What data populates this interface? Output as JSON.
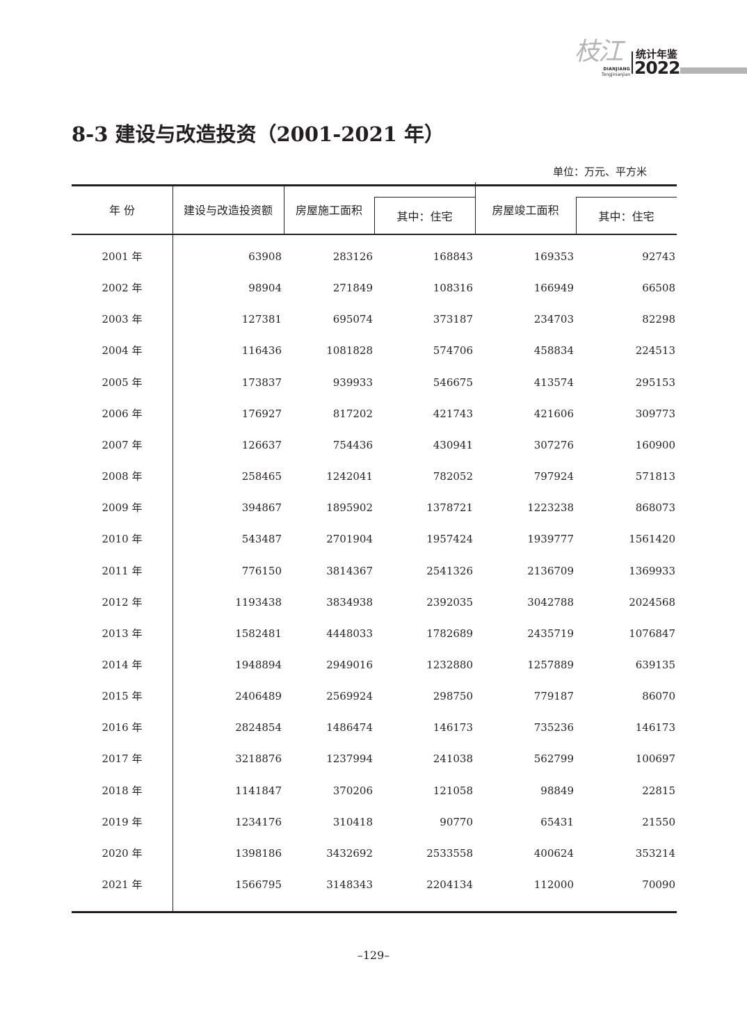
{
  "header": {
    "logo_calligraphy": "枝江",
    "logo_pinyin_1": "DIANJIANG",
    "logo_pinyin_2": "Tongjinianjian",
    "logo_title": "统计年鉴",
    "logo_year": "2022"
  },
  "title": "8-3  建设与改造投资（2001-2021 年）",
  "unit": "单位：万元、平方米",
  "table": {
    "columns": [
      "年 份",
      "建设与改造投资额",
      "房屋施工面积",
      "其中：住宅",
      "房屋竣工面积",
      "其中：住宅"
    ],
    "rows": [
      [
        "2001 年",
        "63908",
        "283126",
        "168843",
        "169353",
        "92743"
      ],
      [
        "2002 年",
        "98904",
        "271849",
        "108316",
        "166949",
        "66508"
      ],
      [
        "2003 年",
        "127381",
        "695074",
        "373187",
        "234703",
        "82298"
      ],
      [
        "2004 年",
        "116436",
        "1081828",
        "574706",
        "458834",
        "224513"
      ],
      [
        "2005 年",
        "173837",
        "939933",
        "546675",
        "413574",
        "295153"
      ],
      [
        "2006 年",
        "176927",
        "817202",
        "421743",
        "421606",
        "309773"
      ],
      [
        "2007 年",
        "126637",
        "754436",
        "430941",
        "307276",
        "160900"
      ],
      [
        "2008 年",
        "258465",
        "1242041",
        "782052",
        "797924",
        "571813"
      ],
      [
        "2009 年",
        "394867",
        "1895902",
        "1378721",
        "1223238",
        "868073"
      ],
      [
        "2010 年",
        "543487",
        "2701904",
        "1957424",
        "1939777",
        "1561420"
      ],
      [
        "2011 年",
        "776150",
        "3814367",
        "2541326",
        "2136709",
        "1369933"
      ],
      [
        "2012 年",
        "1193438",
        "3834938",
        "2392035",
        "3042788",
        "2024568"
      ],
      [
        "2013 年",
        "1582481",
        "4448033",
        "1782689",
        "2435719",
        "1076847"
      ],
      [
        "2014 年",
        "1948894",
        "2949016",
        "1232880",
        "1257889",
        "639135"
      ],
      [
        "2015 年",
        "2406489",
        "2569924",
        "298750",
        "779187",
        "86070"
      ],
      [
        "2016 年",
        "2824854",
        "1486474",
        "146173",
        "735236",
        "146173"
      ],
      [
        "2017 年",
        "3218876",
        "1237994",
        "241038",
        "562799",
        "100697"
      ],
      [
        "2018 年",
        "1141847",
        "370206",
        "121058",
        "98849",
        "22815"
      ],
      [
        "2019 年",
        "1234176",
        "310418",
        "90770",
        "65431",
        "21550"
      ],
      [
        "2020 年",
        "1398186",
        "3432692",
        "2533558",
        "400624",
        "353214"
      ],
      [
        "2021 年",
        "1566795",
        "3148343",
        "2204134",
        "112000",
        "70090"
      ]
    ]
  },
  "page_number": "–129–"
}
